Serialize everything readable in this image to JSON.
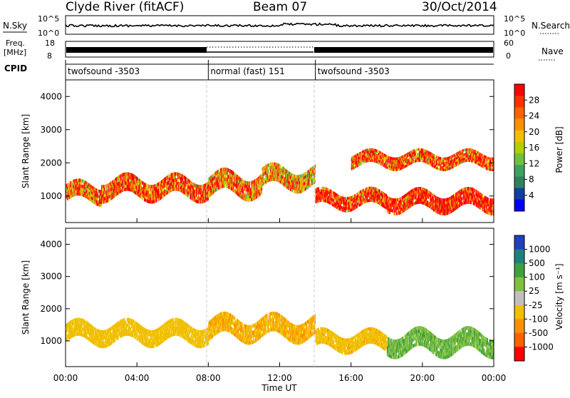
{
  "header": {
    "station": "Clyde River (fitACF)",
    "beam": "Beam 07",
    "date": "30/Oct/2014"
  },
  "top_panels": {
    "nsky_label": "N.Sky",
    "nsky_ticks": [
      "10^5",
      "10^0"
    ],
    "nsearch_label": "N.Search",
    "nsearch_ticks": [
      "10^5",
      "10^0"
    ],
    "freq_label_1": "Freq.",
    "freq_label_2": "[MHz]",
    "freq_ticks": [
      "18",
      "8"
    ],
    "nave_label": "Nave",
    "nave_ticks": [
      "60",
      "0"
    ],
    "cpid_label": "CPID",
    "cpid_segments": [
      {
        "label": "twofsound -3503",
        "start_h": 0,
        "end_h": 8
      },
      {
        "label": "normal (fast) 151",
        "start_h": 8,
        "end_h": 14
      },
      {
        "label": "twofsound -3503",
        "start_h": 14,
        "end_h": 24
      }
    ]
  },
  "x_axis": {
    "label": "Time UT",
    "ticks": [
      "00:00",
      "04:00",
      "08:00",
      "12:00",
      "16:00",
      "20:00",
      "00:00"
    ]
  },
  "chart_data": [
    {
      "type": "heatmap",
      "name": "power",
      "xlabel": "Time UT",
      "ylabel": "Slant Range [km]",
      "xlim": [
        0,
        24
      ],
      "ylim": [
        200,
        4500
      ],
      "yticks": [
        "4000",
        "3000",
        "2000",
        "1000"
      ],
      "colorbar": {
        "label": "Power [dB]",
        "ticks": [
          "28",
          "24",
          "20",
          "16",
          "12",
          "8",
          "4"
        ],
        "colors": [
          "#ff0000",
          "#ff3000",
          "#ff6000",
          "#ff9000",
          "#f0c000",
          "#b0d000",
          "#70c040",
          "#40a060",
          "#308060",
          "#1040a0",
          "#0000ff"
        ]
      },
      "bands": [
        {
          "t0": 0,
          "t1": 2,
          "r_center": 1100,
          "r_width": 500,
          "value": 22
        },
        {
          "t0": 2,
          "t1": 8,
          "r_center": 1250,
          "r_width": 550,
          "value": 24
        },
        {
          "t0": 8,
          "t1": 11,
          "r_center": 1350,
          "r_width": 600,
          "value": 22
        },
        {
          "t0": 11,
          "t1": 14,
          "r_center": 1550,
          "r_width": 550,
          "value": 20
        },
        {
          "t0": 14,
          "t1": 18,
          "r_center": 900,
          "r_width": 450,
          "value": 26
        },
        {
          "t0": 18,
          "t1": 24,
          "r_center": 850,
          "r_width": 500,
          "value": 28
        },
        {
          "t0": 16,
          "t1": 24,
          "r_center": 2100,
          "r_width": 400,
          "value": 24
        }
      ]
    },
    {
      "type": "heatmap",
      "name": "velocity",
      "xlabel": "Time UT",
      "ylabel": "Slant Range [km]",
      "xlim": [
        0,
        24
      ],
      "ylim": [
        200,
        4500
      ],
      "yticks": [
        "4000",
        "3000",
        "2000",
        "1000"
      ],
      "colorbar": {
        "label": "Velocity [m s⁻¹]",
        "ticks": [
          "1000",
          "500",
          "100",
          "25",
          "-25",
          "-100",
          "-500",
          "-1000"
        ],
        "colors": [
          "#2040c0",
          "#208080",
          "#40a040",
          "#80c040",
          "#c0c0c0",
          "#f0c000",
          "#ff9000",
          "#ff6000",
          "#ff0000"
        ]
      },
      "bands": [
        {
          "t0": 0,
          "t1": 8,
          "r_center": 1250,
          "r_width": 550,
          "value": -200
        },
        {
          "t0": 8,
          "t1": 14,
          "r_center": 1400,
          "r_width": 600,
          "value": -300
        },
        {
          "t0": 14,
          "t1": 18,
          "r_center": 1000,
          "r_width": 500,
          "value": -250
        },
        {
          "t0": 18,
          "t1": 24,
          "r_center": 950,
          "r_width": 600,
          "value": 300
        }
      ]
    }
  ]
}
